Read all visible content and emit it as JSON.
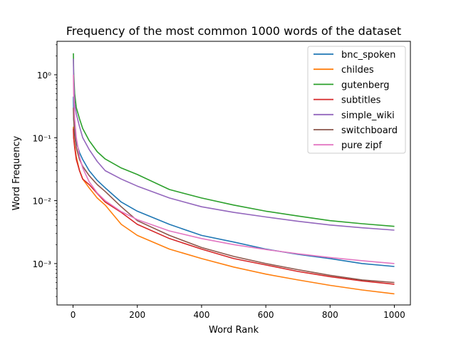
{
  "chart_data": {
    "type": "line",
    "title": "Frequency of the most common 1000 words of the dataset",
    "xlabel": "Word Rank",
    "ylabel": "Word Frequency",
    "xlim": [
      -50,
      1050
    ],
    "ylim": [
      0.00022,
      3.4
    ],
    "yscale": "log",
    "x_ticks": [
      0,
      200,
      400,
      600,
      800,
      1000
    ],
    "x_tick_labels": [
      "0",
      "200",
      "400",
      "600",
      "800",
      "1000"
    ],
    "y_ticks": [
      0.001,
      0.01,
      0.1,
      1
    ],
    "y_tick_labels": [
      "10⁻³",
      "10⁻²",
      "10⁻¹",
      "10⁰"
    ],
    "grid": false,
    "legend_position": "top-right",
    "series": [
      {
        "name": "bnc_spoken",
        "color": "#1f77b4",
        "x": [
          1,
          2,
          5,
          10,
          20,
          30,
          50,
          75,
          100,
          150,
          200,
          300,
          400,
          500,
          600,
          700,
          800,
          900,
          1000
        ],
        "y": [
          0.45,
          0.2,
          0.13,
          0.085,
          0.058,
          0.045,
          0.03,
          0.021,
          0.016,
          0.0095,
          0.0068,
          0.0042,
          0.0028,
          0.0022,
          0.0017,
          0.0014,
          0.0012,
          0.001,
          0.0009
        ]
      },
      {
        "name": "childes",
        "color": "#ff7f0e",
        "x": [
          1,
          2,
          5,
          10,
          20,
          30,
          50,
          75,
          100,
          150,
          200,
          300,
          400,
          500,
          600,
          700,
          800,
          900,
          1000
        ],
        "y": [
          0.15,
          0.1,
          0.075,
          0.05,
          0.03,
          0.022,
          0.016,
          0.011,
          0.0085,
          0.0042,
          0.0028,
          0.0017,
          0.0012,
          0.00088,
          0.00068,
          0.00055,
          0.00045,
          0.00038,
          0.00033
        ]
      },
      {
        "name": "gutenberg",
        "color": "#2ca02c",
        "x": [
          1,
          2,
          5,
          10,
          20,
          30,
          50,
          75,
          100,
          150,
          200,
          300,
          400,
          500,
          600,
          700,
          800,
          900,
          1000
        ],
        "y": [
          2.2,
          1.1,
          0.5,
          0.3,
          0.2,
          0.14,
          0.09,
          0.06,
          0.046,
          0.033,
          0.026,
          0.015,
          0.011,
          0.0085,
          0.0068,
          0.0057,
          0.0048,
          0.0043,
          0.0039
        ]
      },
      {
        "name": "subtitles",
        "color": "#d62728",
        "x": [
          1,
          2,
          5,
          10,
          20,
          30,
          50,
          75,
          100,
          150,
          200,
          300,
          400,
          500,
          600,
          700,
          800,
          900,
          1000
        ],
        "y": [
          0.14,
          0.1,
          0.07,
          0.045,
          0.03,
          0.022,
          0.018,
          0.013,
          0.0095,
          0.0065,
          0.0042,
          0.0025,
          0.0017,
          0.0012,
          0.00095,
          0.00075,
          0.00062,
          0.00053,
          0.00047
        ]
      },
      {
        "name": "simple_wiki",
        "color": "#9467bd",
        "x": [
          1,
          2,
          5,
          10,
          20,
          30,
          50,
          75,
          100,
          150,
          200,
          300,
          400,
          500,
          600,
          700,
          800,
          900,
          1000
        ],
        "y": [
          1.8,
          0.9,
          0.35,
          0.24,
          0.15,
          0.1,
          0.065,
          0.042,
          0.03,
          0.022,
          0.017,
          0.011,
          0.008,
          0.0065,
          0.0055,
          0.0047,
          0.0041,
          0.0037,
          0.0034
        ]
      },
      {
        "name": "switchboard",
        "color": "#8c564b",
        "x": [
          1,
          2,
          5,
          10,
          20,
          30,
          50,
          75,
          100,
          150,
          200,
          300,
          400,
          500,
          600,
          700,
          800,
          900,
          1000
        ],
        "y": [
          0.3,
          0.2,
          0.11,
          0.07,
          0.045,
          0.035,
          0.025,
          0.018,
          0.014,
          0.008,
          0.0048,
          0.0028,
          0.0018,
          0.0013,
          0.001,
          0.0008,
          0.00065,
          0.00055,
          0.0005
        ]
      },
      {
        "name": "pure zipf",
        "color": "#e377c2",
        "x": [
          1,
          2,
          5,
          10,
          20,
          30,
          50,
          75,
          100,
          150,
          200,
          300,
          400,
          500,
          600,
          700,
          800,
          900,
          1000
        ],
        "y": [
          1.0,
          0.5,
          0.2,
          0.1,
          0.05,
          0.033,
          0.02,
          0.0133,
          0.01,
          0.0067,
          0.005,
          0.0033,
          0.0025,
          0.002,
          0.00167,
          0.00143,
          0.00125,
          0.00111,
          0.001
        ]
      }
    ]
  }
}
